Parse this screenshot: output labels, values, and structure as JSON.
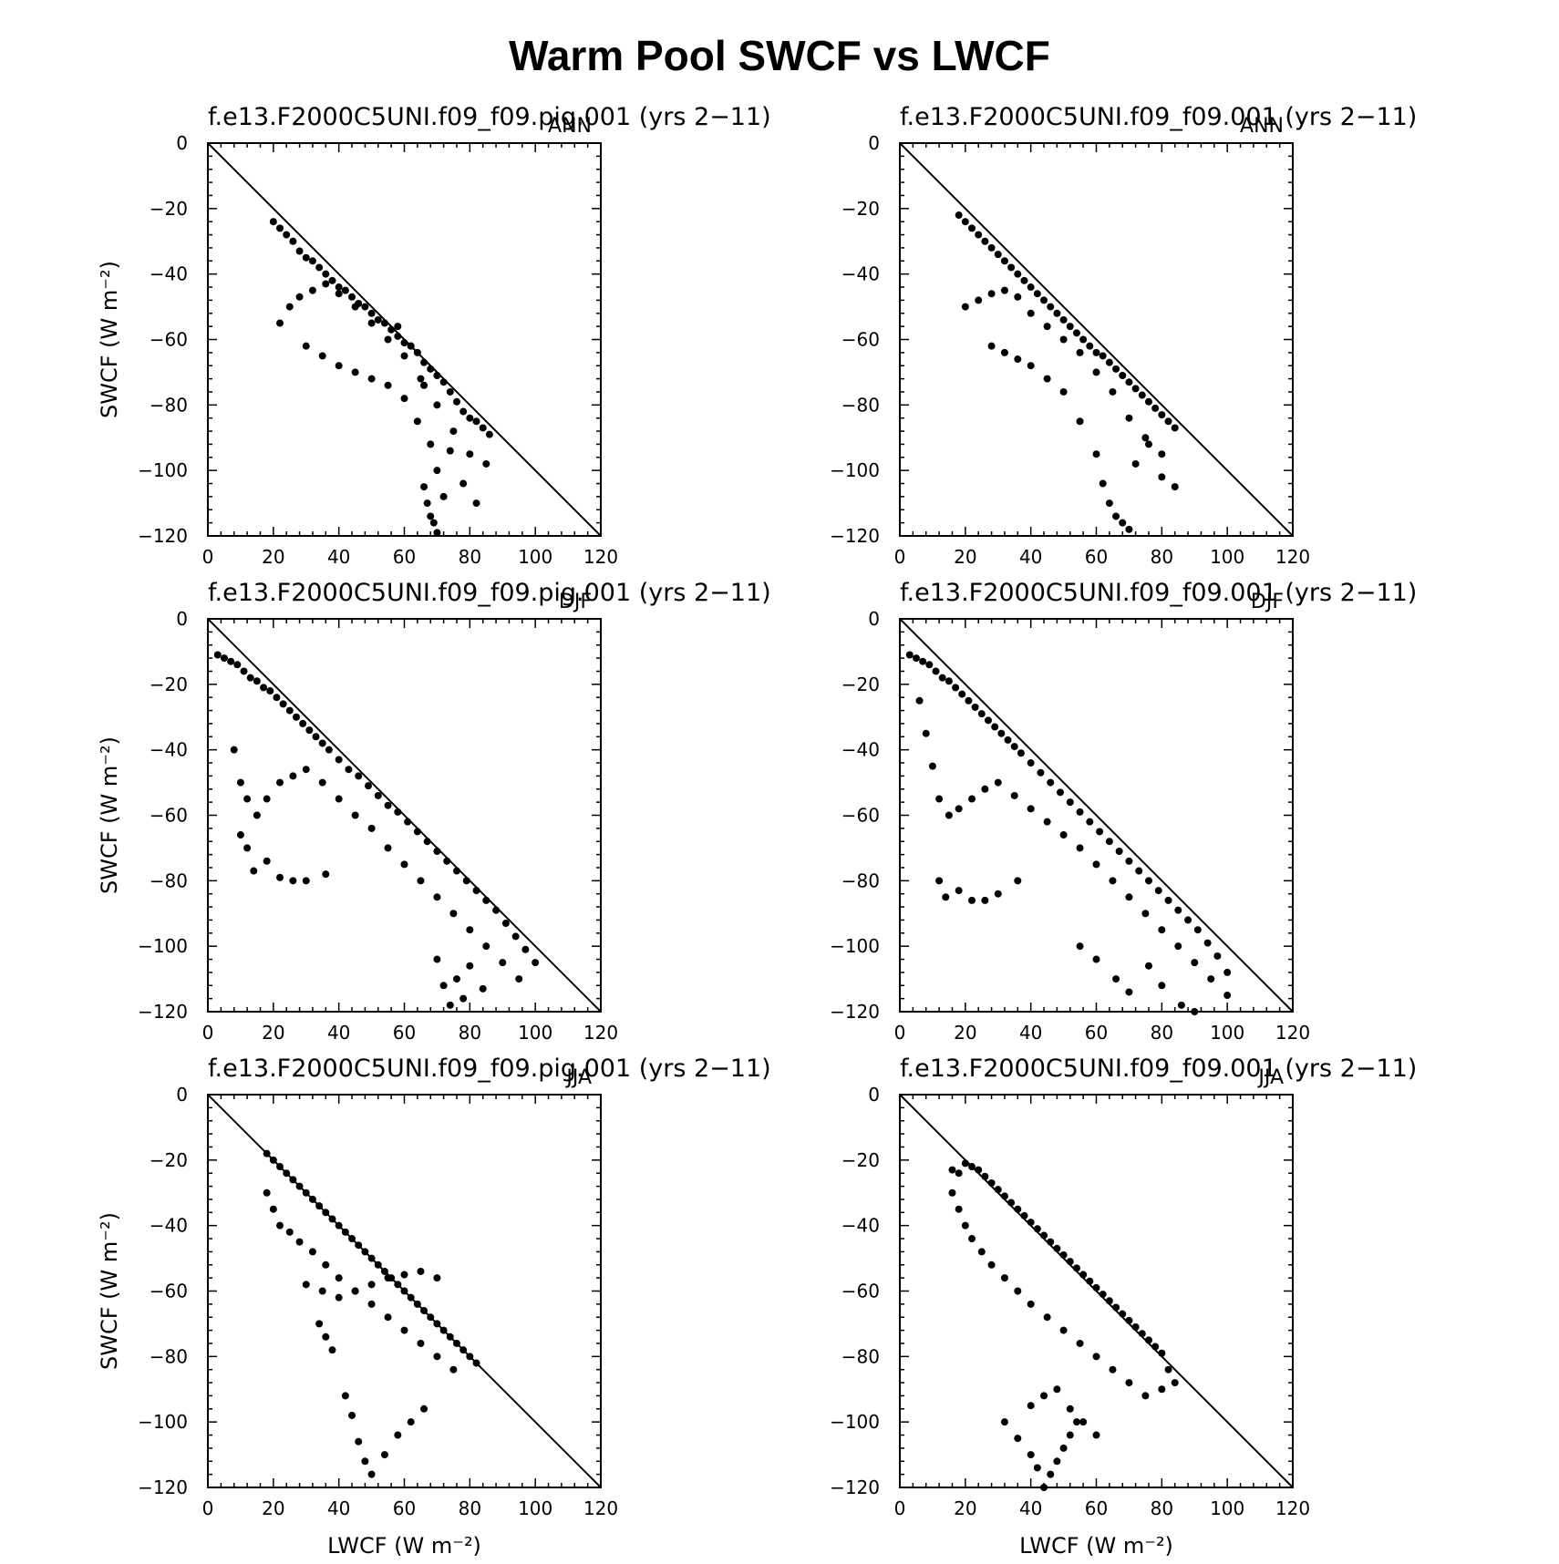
{
  "figure_title": "Warm Pool SWCF vs LWCF",
  "chart_data": [
    {
      "type": "scatter",
      "title": "f.e13.F2000C5UNI.f09_f09.pig.001 (yrs 2−11)",
      "season": "ANN",
      "xlabel": "",
      "ylabel": "SWCF (W m⁻²)",
      "xlim": [
        0,
        120
      ],
      "ylim": [
        -120,
        0
      ],
      "reference_line": "y = −x",
      "xticks": [
        "0",
        "20",
        "40",
        "60",
        "80",
        "100",
        "120"
      ],
      "yticks": [
        "0",
        "−20",
        "−40",
        "−60",
        "−80",
        "−100",
        "−120"
      ],
      "x": [
        20,
        22,
        24,
        26,
        28,
        30,
        32,
        34,
        36,
        38,
        40,
        42,
        44,
        46,
        48,
        50,
        52,
        54,
        56,
        58,
        60,
        62,
        64,
        66,
        68,
        70,
        72,
        74,
        76,
        78,
        80,
        82,
        84,
        86,
        22,
        25,
        28,
        32,
        36,
        40,
        45,
        50,
        55,
        60,
        65,
        70,
        75,
        80,
        85,
        30,
        35,
        40,
        45,
        50,
        55,
        60,
        64,
        68,
        70,
        72,
        66,
        67,
        68,
        69,
        70,
        58,
        62,
        66,
        74,
        78,
        82
      ],
      "y": [
        -24,
        -26,
        -28,
        -30,
        -33,
        -35,
        -36,
        -38,
        -40,
        -42,
        -44,
        -45,
        -47,
        -49,
        -50,
        -52,
        -54,
        -55,
        -57,
        -59,
        -61,
        -62,
        -64,
        -67,
        -69,
        -71,
        -73,
        -76,
        -79,
        -82,
        -84,
        -85,
        -87,
        -89,
        -55,
        -50,
        -47,
        -45,
        -43,
        -46,
        -50,
        -55,
        -60,
        -65,
        -72,
        -80,
        -88,
        -95,
        -98,
        -62,
        -65,
        -68,
        -70,
        -72,
        -74,
        -78,
        -85,
        -92,
        -100,
        -108,
        -105,
        -110,
        -114,
        -116,
        -119,
        -56,
        -62,
        -74,
        -94,
        -104,
        -110
      ]
    },
    {
      "type": "scatter",
      "title": "f.e13.F2000C5UNI.f09_f09.001 (yrs 2−11)",
      "season": "ANN",
      "xlabel": "",
      "ylabel": "",
      "xlim": [
        0,
        120
      ],
      "ylim": [
        -120,
        0
      ],
      "reference_line": "y = −x",
      "xticks": [
        "0",
        "20",
        "40",
        "60",
        "80",
        "100",
        "120"
      ],
      "yticks": [
        "0",
        "−20",
        "−40",
        "−60",
        "−80",
        "−100",
        "−120"
      ],
      "x": [
        18,
        20,
        22,
        24,
        26,
        28,
        30,
        32,
        34,
        36,
        38,
        40,
        42,
        44,
        46,
        48,
        50,
        52,
        54,
        56,
        58,
        60,
        62,
        64,
        66,
        68,
        70,
        72,
        74,
        76,
        78,
        80,
        82,
        84,
        20,
        24,
        28,
        32,
        36,
        40,
        45,
        50,
        55,
        60,
        65,
        70,
        75,
        80,
        28,
        32,
        36,
        40,
        45,
        50,
        55,
        60,
        62,
        64,
        66,
        68,
        70,
        72,
        76,
        80,
        84
      ],
      "y": [
        -22,
        -24,
        -26,
        -28,
        -30,
        -32,
        -34,
        -36,
        -38,
        -40,
        -42,
        -44,
        -46,
        -48,
        -50,
        -52,
        -54,
        -56,
        -58,
        -60,
        -62,
        -64,
        -65,
        -67,
        -69,
        -71,
        -73,
        -75,
        -77,
        -79,
        -81,
        -83,
        -85,
        -87,
        -50,
        -48,
        -46,
        -45,
        -47,
        -52,
        -56,
        -60,
        -64,
        -70,
        -76,
        -84,
        -90,
        -95,
        -62,
        -64,
        -66,
        -68,
        -72,
        -76,
        -85,
        -95,
        -104,
        -110,
        -114,
        -116,
        -118,
        -98,
        -92,
        -102,
        -105
      ]
    },
    {
      "type": "scatter",
      "title": "f.e13.F2000C5UNI.f09_f09.pig.001 (yrs 2−11)",
      "season": "DJF",
      "xlabel": "",
      "ylabel": "SWCF (W m⁻²)",
      "xlim": [
        0,
        120
      ],
      "ylim": [
        -120,
        0
      ],
      "reference_line": "y = −x",
      "xticks": [
        "0",
        "20",
        "40",
        "60",
        "80",
        "100",
        "120"
      ],
      "yticks": [
        "0",
        "−20",
        "−40",
        "−60",
        "−80",
        "−100",
        "−120"
      ],
      "x": [
        3,
        5,
        7,
        9,
        11,
        13,
        15,
        17,
        19,
        21,
        23,
        25,
        27,
        29,
        31,
        33,
        35,
        37,
        40,
        43,
        46,
        49,
        52,
        55,
        58,
        61,
        64,
        67,
        70,
        73,
        76,
        79,
        82,
        85,
        88,
        91,
        94,
        97,
        100,
        8,
        10,
        12,
        15,
        18,
        22,
        26,
        30,
        35,
        40,
        45,
        50,
        55,
        60,
        65,
        70,
        75,
        80,
        85,
        90,
        95,
        10,
        12,
        14,
        18,
        22,
        26,
        30,
        36,
        70,
        72,
        74,
        76,
        78,
        80,
        84
      ],
      "y": [
        -11,
        -12,
        -13,
        -14,
        -16,
        -18,
        -19,
        -21,
        -22,
        -24,
        -26,
        -28,
        -30,
        -32,
        -34,
        -36,
        -38,
        -40,
        -43,
        -46,
        -48,
        -51,
        -54,
        -57,
        -59,
        -62,
        -65,
        -68,
        -71,
        -74,
        -77,
        -80,
        -83,
        -86,
        -89,
        -93,
        -97,
        -101,
        -105,
        -40,
        -50,
        -55,
        -60,
        -55,
        -50,
        -48,
        -46,
        -50,
        -55,
        -60,
        -64,
        -70,
        -75,
        -80,
        -85,
        -90,
        -95,
        -100,
        -105,
        -110,
        -66,
        -70,
        -77,
        -74,
        -79,
        -80,
        -80,
        -78,
        -104,
        -112,
        -118,
        -110,
        -116,
        -106,
        -113
      ]
    },
    {
      "type": "scatter",
      "title": "f.e13.F2000C5UNI.f09_f09.001 (yrs 2−11)",
      "season": "DJF",
      "xlabel": "",
      "ylabel": "",
      "xlim": [
        0,
        120
      ],
      "ylim": [
        -120,
        0
      ],
      "reference_line": "y = −x",
      "xticks": [
        "0",
        "20",
        "40",
        "60",
        "80",
        "100",
        "120"
      ],
      "yticks": [
        "0",
        "−20",
        "−40",
        "−60",
        "−80",
        "−100",
        "−120"
      ],
      "x": [
        3,
        5,
        7,
        9,
        11,
        13,
        15,
        17,
        19,
        21,
        23,
        25,
        27,
        29,
        31,
        33,
        35,
        37,
        40,
        43,
        46,
        49,
        52,
        55,
        58,
        61,
        64,
        67,
        70,
        73,
        76,
        79,
        82,
        85,
        88,
        91,
        94,
        97,
        100,
        6,
        8,
        10,
        12,
        15,
        18,
        22,
        26,
        30,
        35,
        40,
        45,
        50,
        55,
        60,
        65,
        70,
        75,
        80,
        85,
        90,
        95,
        100,
        12,
        14,
        18,
        22,
        26,
        30,
        36,
        55,
        60,
        66,
        70,
        76,
        80,
        86,
        90
      ],
      "y": [
        -11,
        -12,
        -13,
        -14,
        -16,
        -18,
        -19,
        -21,
        -23,
        -25,
        -27,
        -29,
        -31,
        -33,
        -35,
        -37,
        -39,
        -41,
        -44,
        -47,
        -50,
        -53,
        -56,
        -59,
        -62,
        -65,
        -68,
        -71,
        -74,
        -77,
        -80,
        -83,
        -86,
        -89,
        -92,
        -95,
        -99,
        -103,
        -108,
        -25,
        -35,
        -45,
        -55,
        -60,
        -58,
        -55,
        -52,
        -50,
        -54,
        -58,
        -62,
        -66,
        -70,
        -75,
        -80,
        -85,
        -90,
        -95,
        -100,
        -105,
        -110,
        -115,
        -80,
        -85,
        -83,
        -86,
        -86,
        -84,
        -80,
        -100,
        -104,
        -110,
        -114,
        -106,
        -112,
        -118,
        -120
      ]
    },
    {
      "type": "scatter",
      "title": "f.e13.F2000C5UNI.f09_f09.pig.001 (yrs 2−11)",
      "season": "JJA",
      "xlabel": "LWCF (W m⁻²)",
      "ylabel": "SWCF (W m⁻²)",
      "xlim": [
        0,
        120
      ],
      "ylim": [
        -120,
        0
      ],
      "reference_line": "y = −x",
      "xticks": [
        "0",
        "20",
        "40",
        "60",
        "80",
        "100",
        "120"
      ],
      "yticks": [
        "0",
        "−20",
        "−40",
        "−60",
        "−80",
        "−100",
        "−120"
      ],
      "x": [
        18,
        20,
        22,
        24,
        26,
        28,
        30,
        32,
        34,
        36,
        38,
        40,
        42,
        44,
        46,
        48,
        50,
        52,
        54,
        56,
        58,
        60,
        62,
        64,
        66,
        68,
        70,
        72,
        74,
        76,
        78,
        80,
        82,
        18,
        20,
        22,
        25,
        28,
        32,
        36,
        40,
        45,
        50,
        55,
        60,
        65,
        70,
        75,
        30,
        35,
        40,
        45,
        50,
        55,
        60,
        65,
        70,
        42,
        44,
        46,
        48,
        50,
        54,
        58,
        62,
        66,
        34,
        36,
        38
      ],
      "y": [
        -18,
        -20,
        -22,
        -24,
        -26,
        -28,
        -30,
        -32,
        -34,
        -36,
        -38,
        -40,
        -42,
        -44,
        -46,
        -48,
        -50,
        -52,
        -54,
        -56,
        -58,
        -60,
        -62,
        -64,
        -66,
        -68,
        -70,
        -72,
        -74,
        -76,
        -78,
        -80,
        -82,
        -30,
        -35,
        -40,
        -42,
        -45,
        -48,
        -52,
        -56,
        -60,
        -64,
        -68,
        -72,
        -76,
        -80,
        -84,
        -58,
        -60,
        -62,
        -60,
        -58,
        -56,
        -55,
        -54,
        -56,
        -92,
        -98,
        -106,
        -112,
        -116,
        -110,
        -104,
        -100,
        -96,
        -70,
        -74,
        -78
      ]
    },
    {
      "type": "scatter",
      "title": "f.e13.F2000C5UNI.f09_f09.001 (yrs 2−11)",
      "season": "JJA",
      "xlabel": "LWCF (W m⁻²)",
      "ylabel": "",
      "xlim": [
        0,
        120
      ],
      "ylim": [
        -120,
        0
      ],
      "reference_line": "y = −x",
      "xticks": [
        "0",
        "20",
        "40",
        "60",
        "80",
        "100",
        "120"
      ],
      "yticks": [
        "0",
        "−20",
        "−40",
        "−60",
        "−80",
        "−100",
        "−120"
      ],
      "x": [
        16,
        18,
        20,
        22,
        24,
        26,
        28,
        30,
        32,
        34,
        36,
        38,
        40,
        42,
        44,
        46,
        48,
        50,
        52,
        54,
        56,
        58,
        60,
        62,
        64,
        66,
        68,
        70,
        72,
        74,
        76,
        78,
        80,
        82,
        84,
        16,
        18,
        20,
        22,
        25,
        28,
        32,
        36,
        40,
        45,
        50,
        55,
        60,
        65,
        70,
        75,
        80,
        32,
        36,
        40,
        44,
        48,
        52,
        56,
        60,
        40,
        42,
        44,
        46,
        48,
        50,
        52,
        54
      ],
      "y": [
        -23,
        -24,
        -21,
        -22,
        -23,
        -25,
        -27,
        -29,
        -31,
        -33,
        -35,
        -37,
        -39,
        -41,
        -43,
        -45,
        -47,
        -49,
        -51,
        -53,
        -55,
        -57,
        -59,
        -61,
        -63,
        -65,
        -67,
        -69,
        -71,
        -73,
        -75,
        -77,
        -79,
        -84,
        -88,
        -30,
        -35,
        -40,
        -44,
        -48,
        -52,
        -56,
        -60,
        -64,
        -68,
        -72,
        -76,
        -80,
        -84,
        -88,
        -92,
        -90,
        -100,
        -105,
        -95,
        -92,
        -90,
        -96,
        -100,
        -104,
        -110,
        -114,
        -120,
        -116,
        -112,
        -108,
        -104,
        -100
      ]
    }
  ]
}
